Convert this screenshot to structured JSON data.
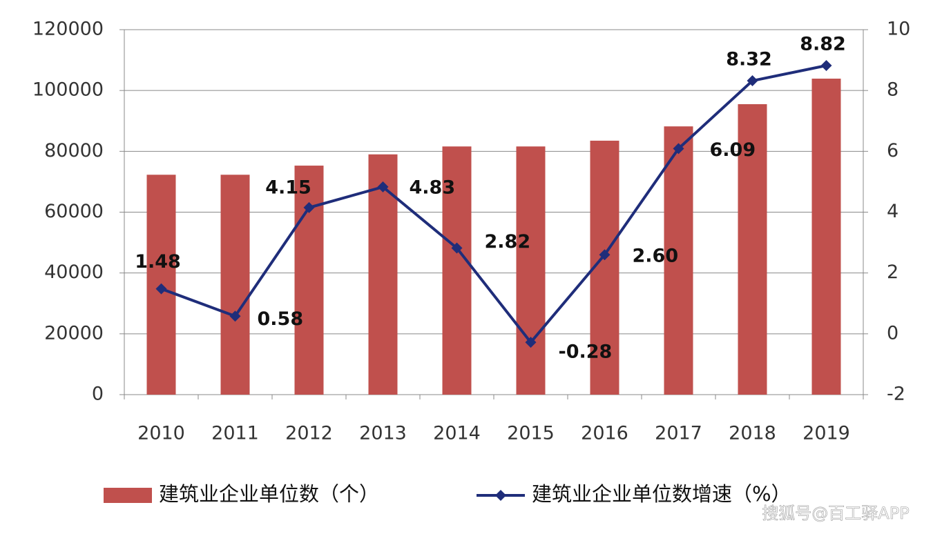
{
  "chart_data": {
    "type": "bar-line",
    "categories": [
      "2010",
      "2011",
      "2012",
      "2013",
      "2014",
      "2015",
      "2016",
      "2017",
      "2018",
      "2019"
    ],
    "series": [
      {
        "name": "建筑业企业单位数（个）",
        "color": "#c0504d",
        "type": "bar",
        "values": [
          72300,
          72300,
          75300,
          79000,
          81600,
          81600,
          83500,
          88200,
          95500,
          103900
        ]
      },
      {
        "name": "建筑业企业单位数增速（%）",
        "color": "#1f2d7a",
        "type": "line",
        "axis": "y2",
        "values": [
          1.48,
          0.58,
          4.15,
          4.83,
          2.82,
          -0.28,
          2.6,
          6.09,
          8.32,
          8.82
        ],
        "value_labels": [
          "1.48",
          "0.58",
          "4.15",
          "4.83",
          "2.82",
          "-0.28",
          "2.60",
          "6.09",
          "8.32",
          "8.82"
        ]
      }
    ],
    "ylim": [
      0,
      120000
    ],
    "yticks": [
      0,
      20000,
      40000,
      60000,
      80000,
      100000,
      120000
    ],
    "y2lim": [
      -2,
      10
    ],
    "y2ticks": [
      -2,
      0,
      2,
      4,
      6,
      8,
      10
    ],
    "grid": true,
    "legend": "bottom",
    "watermark": "搜狐号@百工驿APP"
  }
}
